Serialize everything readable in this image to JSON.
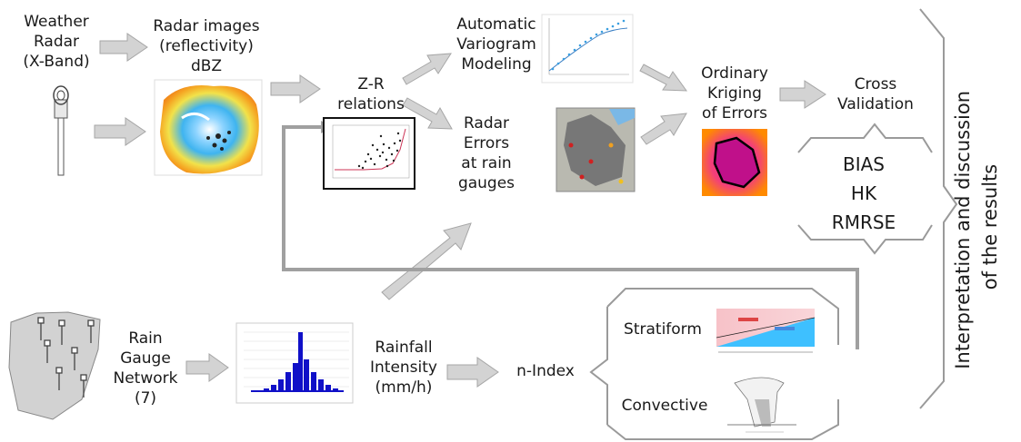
{
  "nodes": {
    "weather_radar": "Weather\nRadar\n(X-Band)",
    "radar_images": "Radar images\n(reflectivity)\ndBZ",
    "zr_relations": "Z-R\nrelations",
    "variogram": "Automatic\nVariogram\nModeling",
    "radar_errors": "Radar\nErrors\nat rain\ngauges",
    "kriging": "Ordinary\nKriging\nof Errors",
    "cross_validation": "Cross\nValidation",
    "metrics": [
      "BIAS",
      "HK",
      "RMRSE"
    ],
    "rain_gauge": "Rain\nGauge\nNetwork\n(7)",
    "rainfall_intensity": "Rainfall\nIntensity\n(mm/h)",
    "n_index": "n-Index",
    "stratiform": "Stratiform",
    "convective": "Convective",
    "interpretation": "Interpretation and discussion\nof the results"
  },
  "colors": {
    "arrow_fill": "#d3d3d3",
    "arrow_stroke": "#a6a6a6",
    "line_gray": "#a0a0a0",
    "bracket_gray": "#9a9a9a",
    "map_gray": "#d2d2d2",
    "histogram_blue": "#1010c8"
  }
}
